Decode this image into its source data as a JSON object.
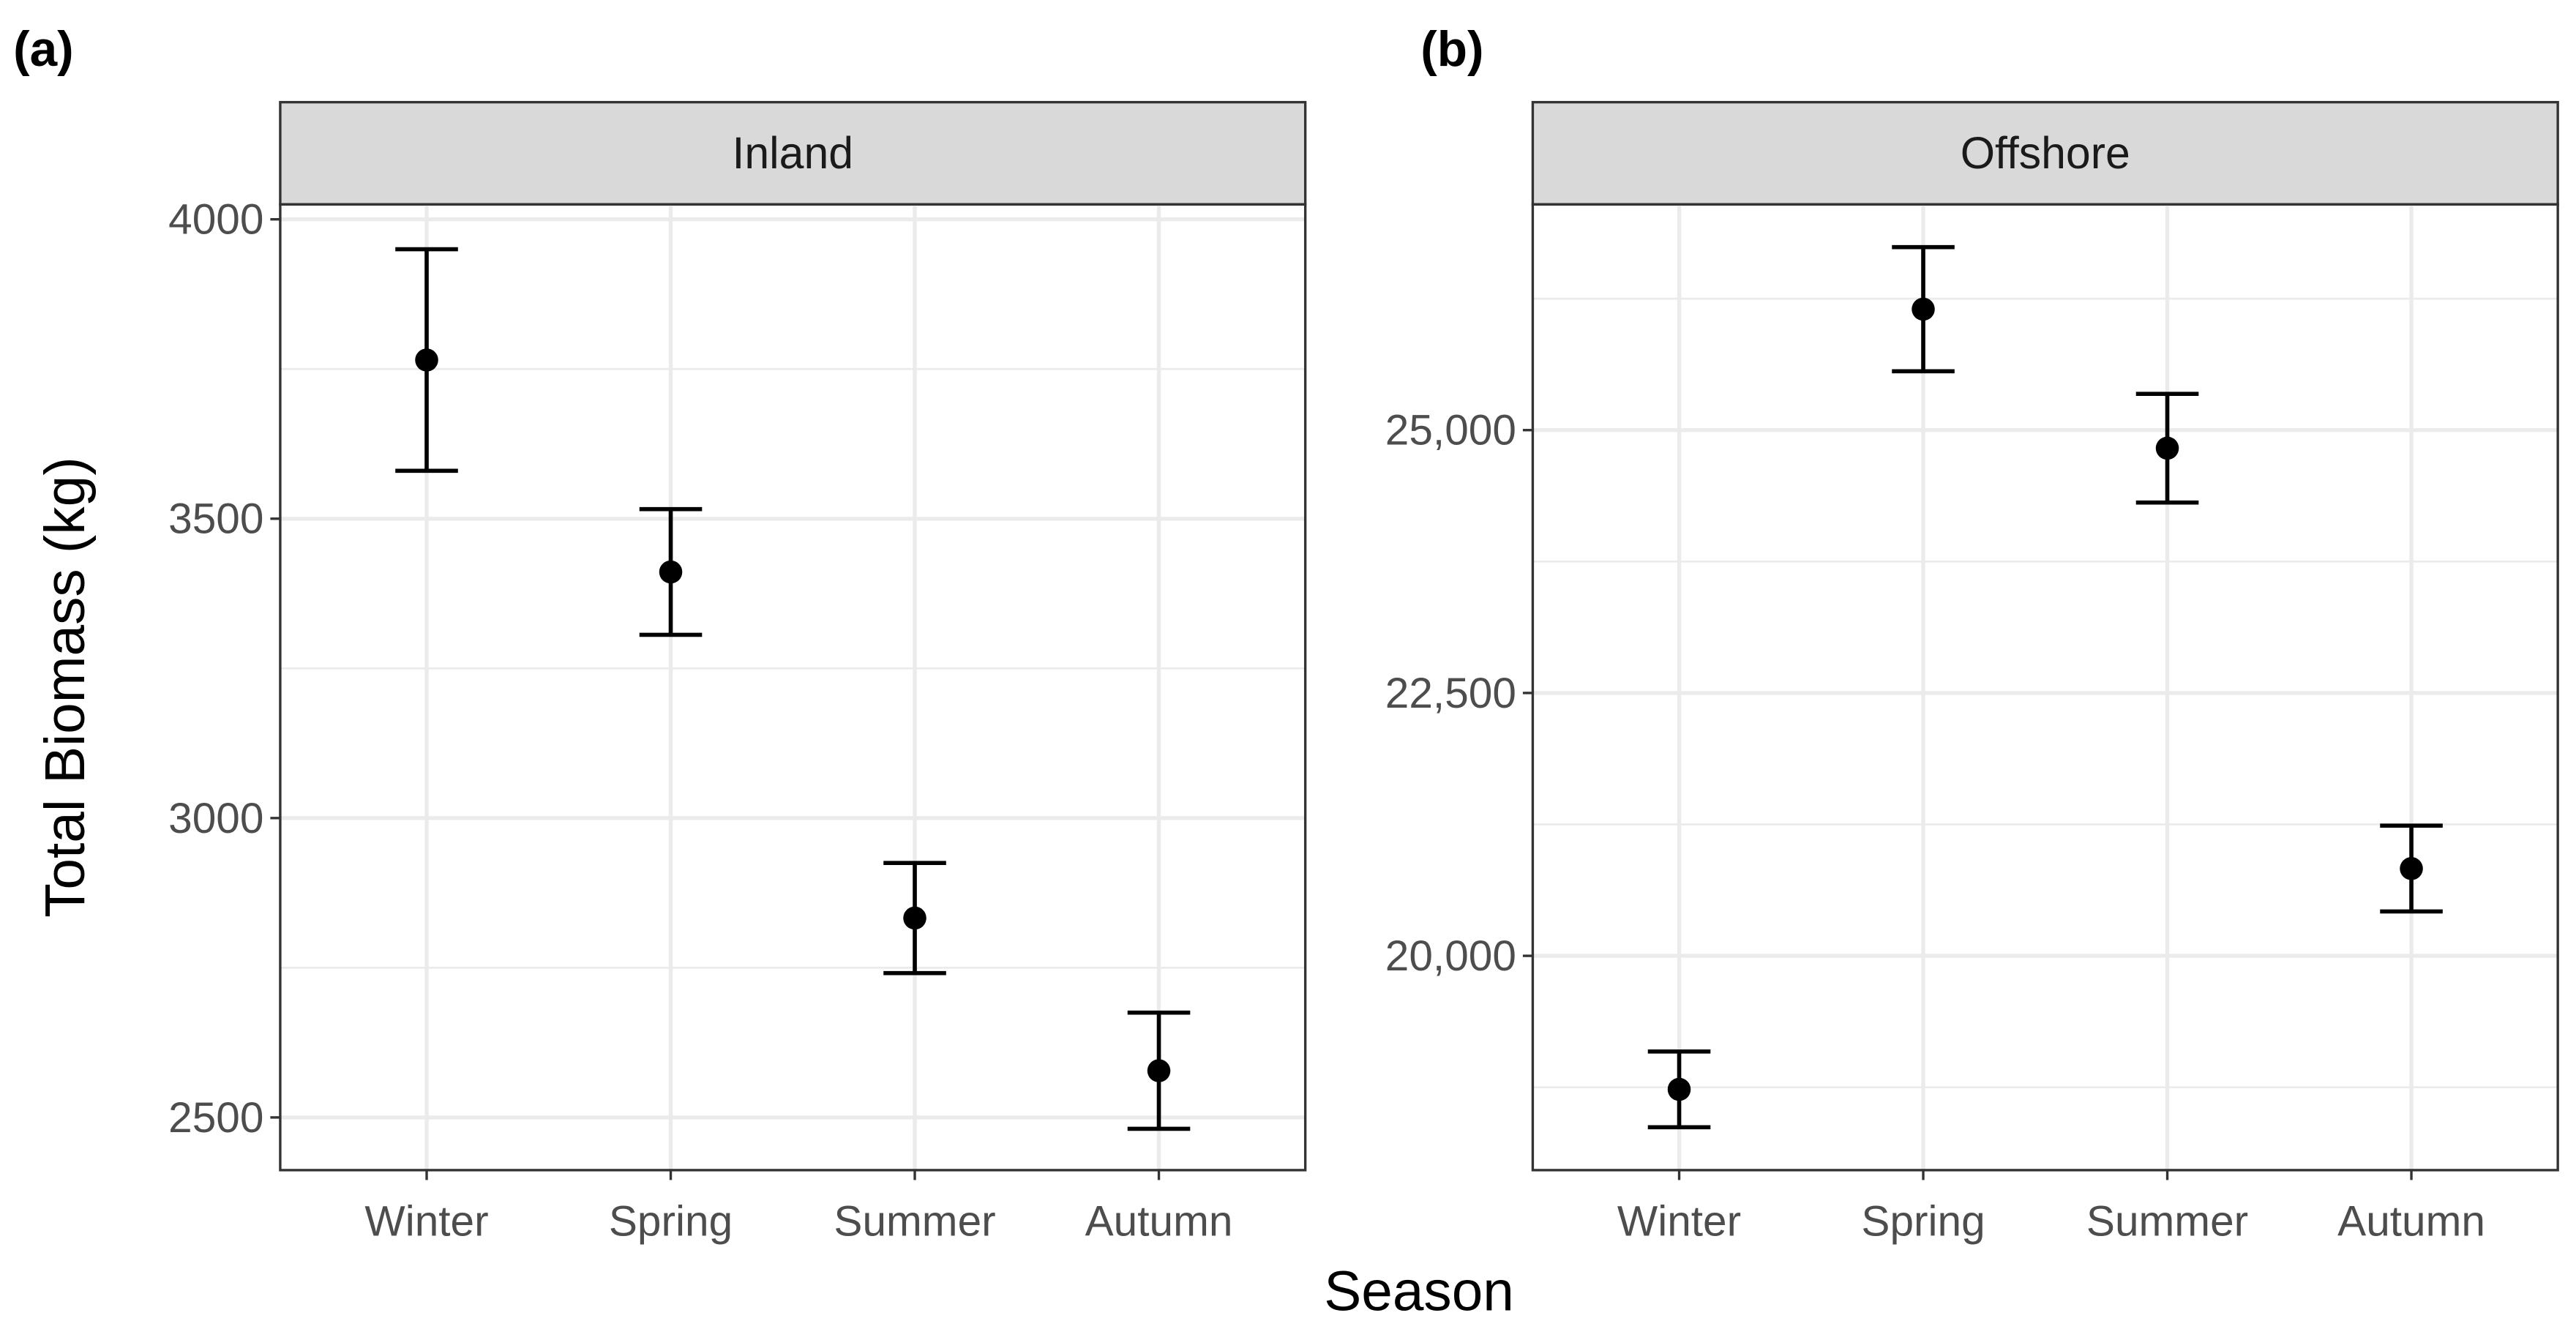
{
  "chart_data": [
    {
      "type": "errorbar",
      "panel_label": "(a)",
      "strip": "Inland",
      "ylabel": "Total Biomass (kg)",
      "xlabel": "Season",
      "categories": [
        "Winter",
        "Spring",
        "Summer",
        "Autumn"
      ],
      "values": [
        3765,
        3411,
        2833,
        2578
      ],
      "errors": [
        185,
        105,
        92,
        97
      ],
      "color": "#000000",
      "ylim": [
        2412,
        4025
      ],
      "yticks": [
        2500,
        3000,
        3500,
        4000
      ],
      "minor_yticks": [
        2750,
        3250,
        3750
      ],
      "grid": true
    },
    {
      "type": "errorbar",
      "panel_label": "(b)",
      "strip": "Offshore",
      "categories": [
        "Winter",
        "Spring",
        "Summer",
        "Autumn"
      ],
      "values": [
        18730,
        26150,
        24828,
        20830
      ],
      "errors": [
        360,
        590,
        517,
        408
      ],
      "color": "#000000",
      "ylim": [
        17962,
        27147
      ],
      "yticks": [
        {
          "value": 20000,
          "label": "20,000"
        },
        {
          "value": 22500,
          "label": "22,500"
        },
        {
          "value": 25000,
          "label": "25,000"
        }
      ],
      "minor_yticks": [
        18750,
        21250,
        23750,
        26250
      ],
      "grid": true
    }
  ]
}
